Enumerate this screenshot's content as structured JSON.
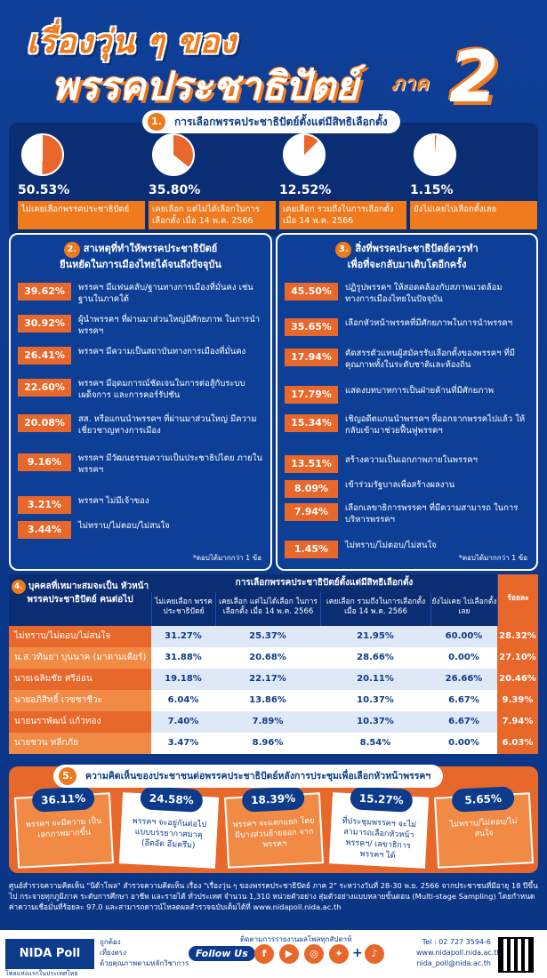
{
  "header": {
    "title_line1": "เรื่องวุ่น ๆ ของ",
    "title_line2": "พรรคประชาธิปัตย์",
    "title_suffix": "ภาค",
    "title_number": "2"
  },
  "section1": {
    "number": "1.",
    "heading": "การเลือกพรรคประชาธิปัตย์ตั้งแต่มีสิทธิเลือกตั้ง",
    "items": [
      {
        "percent": "50.53%",
        "value": 50.53,
        "label": "ไม่เคยเลือกพรรคประชาธิปัตย์"
      },
      {
        "percent": "35.80%",
        "value": 35.8,
        "label": "เคยเลือก แต่ไม่ได้เลือกในการเลือกตั้ง เมื่อ 14 พ.ค. 2566"
      },
      {
        "percent": "12.52%",
        "value": 12.52,
        "label": "เคยเลือก รวมถึงในการเลือกตั้ง เมื่อ 14 พ.ค. 2566"
      },
      {
        "percent": "1.15%",
        "value": 1.15,
        "label": "ยังไม่เคยไปเลือกตั้งเลย"
      }
    ]
  },
  "section2": {
    "number": "2.",
    "heading_line1": "สาเหตุที่ทำให้พรรคประชาธิปัตย์",
    "heading_line2": "ยืนหยัดในการเมืองไทยได้จนถึงปัจจุบัน",
    "items": [
      {
        "value": "39.62%",
        "text": "พรรคฯ มีแฟนคลับ/ฐานทางการเมืองที่มั่นคง เช่น ฐานในภาคใต้"
      },
      {
        "value": "30.92%",
        "text": "ผู้นำพรรคฯ ที่ผ่านมาส่วนใหญ่มีศักยภาพ ในการนำพรรคฯ"
      },
      {
        "value": "26.41%",
        "text": "พรรคฯ มีความเป็นสถาบันทางการเมืองที่มั่นคง"
      },
      {
        "value": "22.60%",
        "text": "พรรคฯ มีอุดมการณ์ชัดเจนในการต่อสู้กับระบบ เผด็จการ และการคอร์รัปชัน"
      },
      {
        "value": "20.08%",
        "text": "สส. หรือแกนนำพรรคฯ ที่ผ่านมาส่วนใหญ่ มีความเชี่ยวชาญทางการเมือง"
      },
      {
        "value": "9.16%",
        "text": "พรรคฯ มีวัฒนธรรมความเป็นประชาธิปไตย ภายในพรรคฯ"
      },
      {
        "value": "3.21%",
        "text": "พรรคฯ ไม่มีเจ้าของ"
      },
      {
        "value": "3.44%",
        "text": "ไม่ทราบ/ไม่ตอบ/ไม่สนใจ"
      }
    ],
    "note": "*ตอบได้มากกว่า 1 ข้อ"
  },
  "section3": {
    "number": "3.",
    "heading_line1": "สิ่งที่พรรคประชาธิปัตย์ควรทำ",
    "heading_line2": "เพื่อที่จะกลับมาเติบโตอีกครั้ง",
    "items": [
      {
        "value": "45.50%",
        "text": "ปฏิรูปพรรคฯ ให้สอดคล้องกับสภาพแวดล้อม ทางการเมืองไทยในปัจจุบัน"
      },
      {
        "value": "35.65%",
        "text": "เลือกหัวหน้าพรรคที่มีศักยภาพในการนำพรรคฯ"
      },
      {
        "value": "17.94%",
        "text": "คัดสรรตัวแทนผู้สมัครรับเลือกตั้งของพรรคฯ ที่มีคุณภาพทั้งในระดับชาติและท้องถิ่น"
      },
      {
        "value": "17.79%",
        "text": "แสดงบทบาทการเป็นฝ่ายค้านที่มีศักยภาพ"
      },
      {
        "value": "15.34%",
        "text": "เชิญอดีตแกนนำพรรคฯ ที่ออกจากพรรคไปแล้ว ให้กลับเข้ามาช่วยฟื้นฟูพรรคฯ"
      },
      {
        "value": "13.51%",
        "text": "สร้างความเป็นเอกภาพภายในพรรคฯ"
      },
      {
        "value": "8.09%",
        "text": "เข้าร่วมรัฐบาลเพื่อสร้างผลงาน"
      },
      {
        "value": "7.94%",
        "text": "เลือกเลขาธิการพรรคฯ ที่มีความสามารถ ในการบริหารพรรคฯ"
      },
      {
        "value": "1.45%",
        "text": "ไม่ทราบ/ไม่ตอบ/ไม่สนใจ"
      }
    ],
    "note": "*ตอบได้มากกว่า 1 ข้อ"
  },
  "section4": {
    "number": "4.",
    "heading": "บุคคลที่เหมาะสมจะเป็น หัวหน้าพรรคประชาธิปัตย์ คนต่อไป",
    "group_heading": "การเลือกพรรคประชาธิปัตย์ตั้งแต่มีสิทธิเลือกตั้ง",
    "columns": [
      "ไม่เคยเลือก พรรคประชาธิปัตย์",
      "เคยเลือก แต่ไม่ได้เลือก ในการเลือกตั้ง เมื่อ 14 พ.ค. 2566",
      "เคยเลือก รวมถึงในการเลือกตั้ง เมื่อ 14 พ.ค. 2566",
      "ยังไม่เคย ไปเลือกตั้งเลย",
      "ร้อยละ"
    ],
    "rows": [
      {
        "name": "ไม่ทราบ/ไม่ตอบ/ไม่สนใจ",
        "values": [
          "31.27%",
          "25.37%",
          "21.95%",
          "60.00%",
          "28.32%"
        ]
      },
      {
        "name": "น.ส.วทันยา บุนนาค (มาดามเดียร์)",
        "values": [
          "31.88%",
          "20.68%",
          "28.66%",
          "0.00%",
          "27.10%"
        ]
      },
      {
        "name": "นายเฉลิมชัย ศรีอ่อน",
        "values": [
          "19.18%",
          "22.17%",
          "20.11%",
          "26.66%",
          "20.46%"
        ]
      },
      {
        "name": "นายอภิสิทธิ์ เวชชาชีวะ",
        "values": [
          "6.04%",
          "13.86%",
          "10.37%",
          "6.67%",
          "9.39%"
        ]
      },
      {
        "name": "นายนราพัฒน์ แก้วทอง",
        "values": [
          "7.40%",
          "7.89%",
          "10.37%",
          "6.67%",
          "7.94%"
        ]
      },
      {
        "name": "นายชวน หลีกภัย",
        "values": [
          "3.47%",
          "8.96%",
          "8.54%",
          "0.00%",
          "6.03%"
        ]
      }
    ]
  },
  "section5": {
    "number": "5.",
    "heading": "ความคิดเห็นของประชาชนต่อพรรคประชาธิปัตย์หลังการประชุมเพื่อเลือกหัวหน้าพรรคฯ",
    "items": [
      {
        "value": "36.11%",
        "text": "พรรคฯ จะมีความ เป็นเอกภาพมากขึ้น"
      },
      {
        "value": "24.58%",
        "text": "พรรคฯ จะอยู่กันต่อไป แบบบรรยากาศมาคุ (อึดอัด อึมครึม)"
      },
      {
        "value": "18.39%",
        "text": "พรรคฯ จะแตกแยก โดยมีบางส่วนย้ายออก จากพรรคฯ"
      },
      {
        "value": "15.27%",
        "text": "ที่ประชุมพรรคฯ จะไม่ สามารถเลือกหัวหน้าพรรคฯ/ เลขาธิการพรรคฯ ได้"
      },
      {
        "value": "5.65%",
        "text": "ไม่ทราบ/ไม่ตอบ/ไม่สนใจ"
      }
    ]
  },
  "footnote": "ศูนย์สำรวจความคิดเห็น \"นิด้าโพล\" สำรวจความคิดเห็น เรื่อง \"เรื่องวุ่น ๆ ของพรรคประชาธิปัตย์ ภาค 2\" ระหว่างวันที่ 28-30 พ.ย. 2566 จากประชาชนที่มีอายุ 18 ปีขึ้นไป กระจายทุกภูมิภาค ระดับการศึกษา อาชีพ และรายได้ ทั่วประเทศ จำนวน 1,310 หน่วยตัวอย่าง สุ่มตัวอย่างแบบหลายขั้นตอน (Multi-stage Sampling) โดยกำหนดค่าความเชื่อมั่นที่ร้อยละ 97.0 และสามารถดาวน์โหลดผลสำรวจฉบับเต็มได้ที่ www.nidapoll.nida.ac.th",
  "footer": {
    "logo": "NIDA Poll",
    "tagline": "โพลแห่งแรกในประเทศไทย",
    "values": [
      "ถูกต้อง",
      "เที่ยงตรง",
      "ด้วยคุณภาพตามหลักวิชาการ"
    ],
    "follow": "Follow Us",
    "follow_caption": "ติดตามการรายงานผลโพลทุกสัปดาห์",
    "tel": "Tel : 02 727 3594-6",
    "web": "www.nidapoll.nida.ac.th",
    "email": "nida_poll@nida.ac.th"
  },
  "colors": {
    "accent": "#e8672a",
    "navy": "#0d3b8c"
  }
}
